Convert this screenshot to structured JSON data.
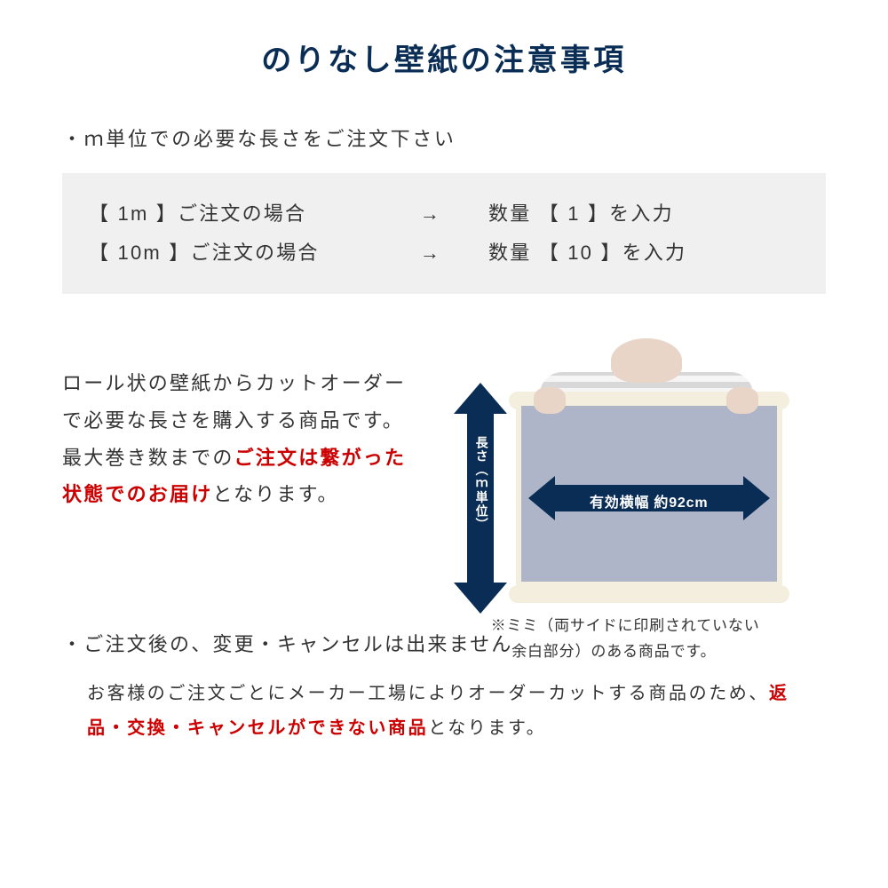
{
  "title": "のりなし壁紙の注意事項",
  "bullet1": "・ｍ単位での必要な長さをご注文下さい",
  "example_box": {
    "rows": [
      {
        "left": "【 1m 】ご注文の場合",
        "arrow": "→",
        "right": "数量 【 1 】を入力"
      },
      {
        "left": "【 10m 】ご注文の場合",
        "arrow": "→",
        "right": "数量 【 10 】を入力"
      }
    ]
  },
  "desc": {
    "part1": "ロール状の壁紙からカットオーダーで必要な長さを購入する商品です。最大巻き数までの",
    "highlight": "ご注文は繋がった状態でのお届け",
    "part2": "となります。"
  },
  "diagram": {
    "vertical_arrow_label": "長さ（ｍ単位）",
    "horizontal_arrow_label": "有効横幅 約92cm",
    "arrow_color": "#0a2d55",
    "sample_color": "#aeb5c8",
    "roll_color": "#f3eede"
  },
  "footnote": "※ミミ（両サイドに印刷されていない\n　 余白部分）のある商品です。",
  "bullet2": "・ご注文後の、変更・キャンセルは出来ません",
  "desc2": {
    "part1": "お客様のご注文ごとにメーカー工場によりオーダーカットする商品のため、",
    "highlight": "返品・交換・キャンセルができない商品",
    "part2": "となります。"
  },
  "colors": {
    "title_color": "#0a2d55",
    "text_color": "#333333",
    "highlight_color": "#cc0000",
    "graybox_bg": "#f0f0f0",
    "body_bg": "#ffffff"
  }
}
